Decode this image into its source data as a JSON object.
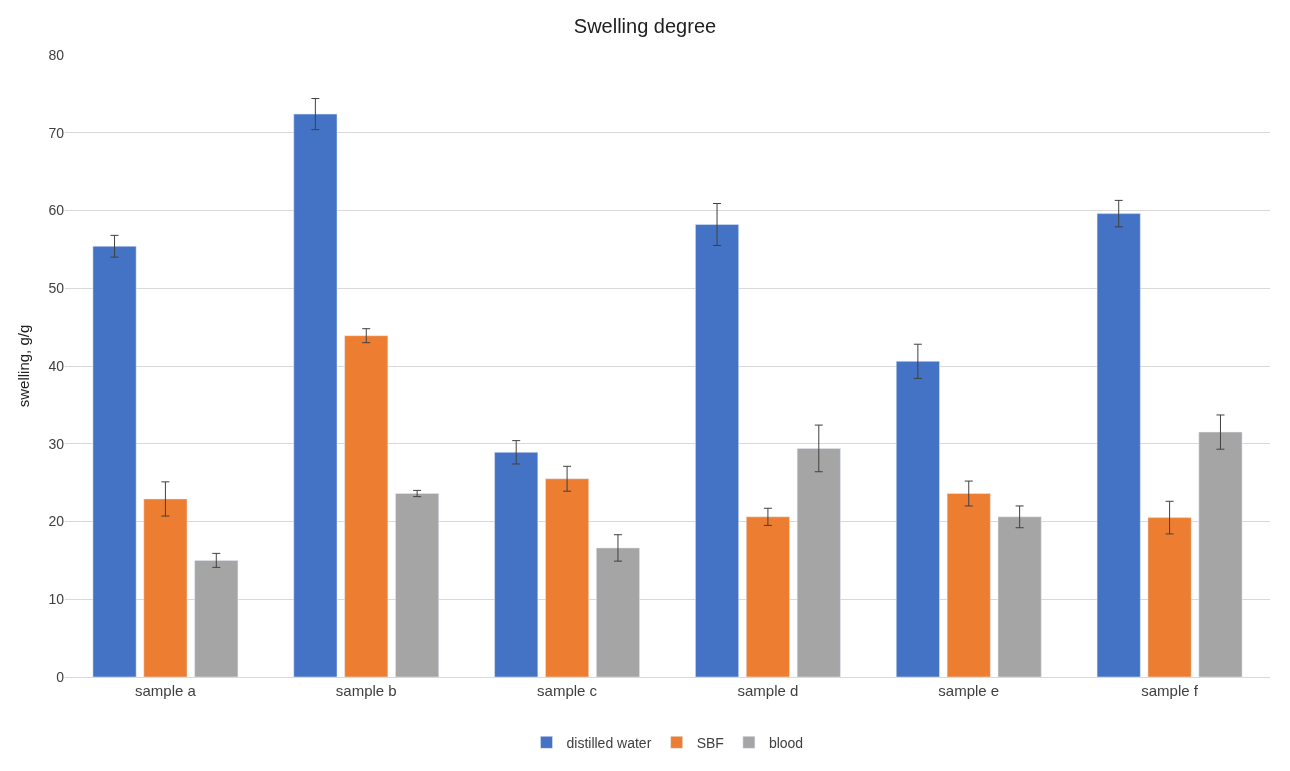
{
  "chart_data": {
    "type": "bar",
    "title": "Swelling degree",
    "ylabel": "swelling, g/g",
    "categories": [
      "sample a",
      "sample b",
      "sample c",
      "sample d",
      "sample e",
      "sample f"
    ],
    "series": [
      {
        "name": "distilled water",
        "color": "#4472c4",
        "values": [
          55.4,
          72.4,
          28.9,
          58.2,
          40.6,
          59.6
        ],
        "errors": [
          1.4,
          2.0,
          1.5,
          2.7,
          2.2,
          1.7
        ]
      },
      {
        "name": "SBF",
        "color": "#ed7d31",
        "values": [
          22.9,
          43.9,
          25.5,
          20.6,
          23.6,
          20.5
        ],
        "errors": [
          2.2,
          0.9,
          1.6,
          1.1,
          1.6,
          2.1
        ]
      },
      {
        "name": "blood",
        "color": "#a5a5a5",
        "values": [
          15.0,
          23.6,
          16.6,
          29.4,
          20.6,
          31.5
        ],
        "errors": [
          0.9,
          0.4,
          1.7,
          3.0,
          1.4,
          2.2
        ]
      }
    ],
    "ylim": [
      0,
      80
    ],
    "yticks": [
      0,
      10,
      20,
      30,
      40,
      50,
      60,
      70,
      80
    ],
    "grid": "y",
    "legend": "bottom"
  }
}
